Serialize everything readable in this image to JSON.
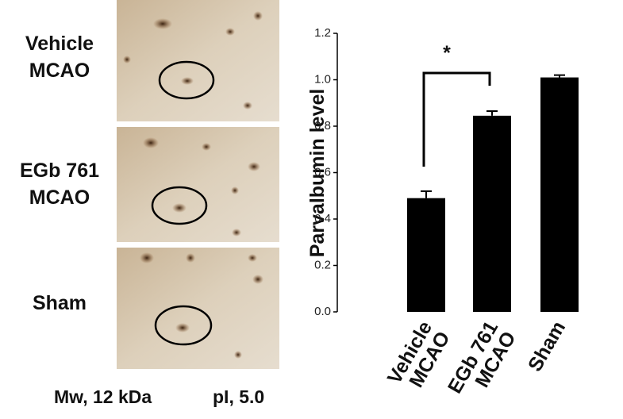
{
  "gel": {
    "labels": [
      [
        "Vehicle",
        "MCAO"
      ],
      [
        "EGb 761",
        "MCAO"
      ],
      [
        "Sham"
      ]
    ],
    "caption": [
      "Mw, 12 kDa",
      "pI, 5.0"
    ]
  },
  "chart_data": {
    "type": "bar",
    "ylabel": "Parvalbumin level",
    "categories": [
      [
        "Vehicle",
        "MCAO"
      ],
      [
        "EGb 761",
        "MCAO"
      ],
      [
        "Sham"
      ]
    ],
    "values": [
      0.49,
      0.845,
      1.01
    ],
    "errors": [
      0.03,
      0.02,
      0.01
    ],
    "color": "#000000",
    "ylim": [
      0,
      1.2
    ],
    "yticks": [
      {
        "value": 0,
        "label": "0.0"
      },
      {
        "value": 0.2,
        "label": "0.2"
      },
      {
        "value": 0.4,
        "label": "0.4"
      },
      {
        "value": 0.6,
        "label": "0.6"
      },
      {
        "value": 0.8,
        "label": "0.8"
      },
      {
        "value": 1.0,
        "label": "1.0"
      },
      {
        "value": 1.2,
        "label": "1.2"
      }
    ],
    "annotation": "*"
  }
}
